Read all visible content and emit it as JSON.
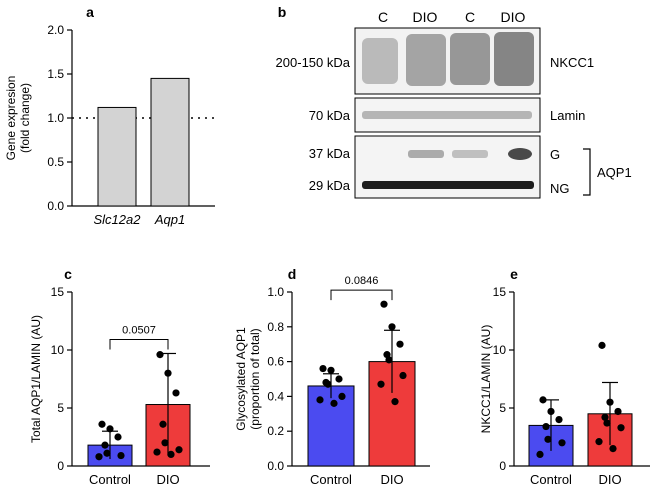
{
  "panels": {
    "a": "a",
    "b": "b",
    "c": "c",
    "d": "d",
    "e": "e"
  },
  "colors": {
    "gray_bar": "#d3d3d3",
    "control": "#4b4bf0",
    "dio": "#ee3b3b",
    "blot_bg": "#f4f4f4",
    "band": "#2a2a2a"
  },
  "blot": {
    "lane_labels": [
      "C",
      "DIO",
      "C",
      "DIO"
    ],
    "rows": [
      {
        "kda": "200-150 kDa",
        "name": "NKCC1"
      },
      {
        "kda": "70 kDa",
        "name": "Lamin"
      },
      {
        "kda": "37 kDa",
        "kda2": "29 kDa",
        "name": "AQP1",
        "upper": "G",
        "lower": "NG"
      }
    ]
  },
  "chart_data": [
    {
      "panel": "a",
      "type": "bar",
      "categories": [
        "Slc12a2",
        "Aqp1"
      ],
      "values": [
        1.12,
        1.45
      ],
      "ylabel": "Gene expresion (fold change)",
      "ylabel_lines": [
        "Gene expresion",
        "(fold change)"
      ],
      "ylim": [
        0,
        2.0
      ],
      "yticks": [
        "0.0",
        "0.5",
        "1.0",
        "1.5",
        "2.0"
      ],
      "reference_line": 1.0,
      "bar_color": "#d3d3d3",
      "italic_categories": true
    },
    {
      "panel": "c",
      "type": "bar",
      "categories": [
        "Control",
        "DIO"
      ],
      "values": [
        1.8,
        5.3
      ],
      "errors": [
        1.2,
        4.4
      ],
      "points": [
        [
          3.6,
          3.2,
          2.5,
          1.8,
          1.1,
          0.9,
          0.8
        ],
        [
          9.6,
          8.0,
          6.3,
          3.6,
          2.0,
          1.4,
          1.2,
          1.0
        ]
      ],
      "ylabel": "Total AQP1/LAMIN (AU)",
      "ylim": [
        0,
        15
      ],
      "yticks": [
        "0",
        "5",
        "10",
        "15"
      ],
      "p_value": "0.0507"
    },
    {
      "panel": "d",
      "type": "bar",
      "categories": [
        "Control",
        "DIO"
      ],
      "values": [
        0.46,
        0.6
      ],
      "errors": [
        0.07,
        0.18
      ],
      "points": [
        [
          0.56,
          0.55,
          0.5,
          0.48,
          0.47,
          0.4,
          0.38,
          0.36
        ],
        [
          0.93,
          0.8,
          0.7,
          0.64,
          0.61,
          0.52,
          0.47,
          0.37
        ]
      ],
      "ylabel": "Glycosylated AQP1 (proportion of total)",
      "ylabel_lines": [
        "Glycosylated AQP1",
        "(proportion of total)"
      ],
      "ylim": [
        0,
        1.0
      ],
      "yticks": [
        "0.0",
        "0.2",
        "0.4",
        "0.6",
        "0.8",
        "1.0"
      ],
      "p_value": "0.0846"
    },
    {
      "panel": "e",
      "type": "bar",
      "categories": [
        "Control",
        "DIO"
      ],
      "values": [
        3.5,
        4.5
      ],
      "errors": [
        2.2,
        2.7
      ],
      "points": [
        [
          5.7,
          4.7,
          4.0,
          3.4,
          2.3,
          2.0,
          1.0
        ],
        [
          10.4,
          5.5,
          4.7,
          4.2,
          3.7,
          3.3,
          2.1,
          1.5
        ]
      ],
      "ylabel": "NKCC1/LAMIN (AU)",
      "ylim": [
        0,
        15
      ],
      "yticks": [
        "0",
        "5",
        "10",
        "15"
      ]
    }
  ]
}
